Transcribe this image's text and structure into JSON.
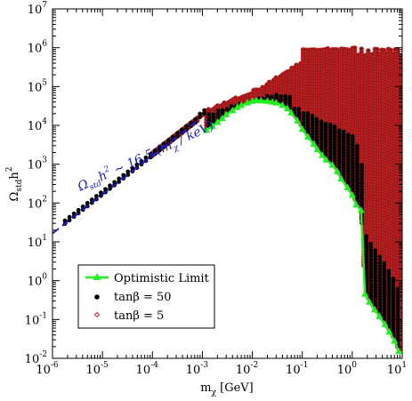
{
  "chart_data": {
    "type": "scatter",
    "xscale": "log",
    "yscale": "log",
    "xlim": [
      1e-06,
      10
    ],
    "ylim": [
      0.01,
      10000000.0
    ],
    "grid": false,
    "legend_position": "bottom-left",
    "xlabel": {
      "main": "m",
      "sub": "χ",
      "rest": " [GeV]"
    },
    "ylabel": {
      "main": "Ω",
      "sub": "std",
      "rest": "h",
      "sup": "2"
    },
    "x_tick_labels": [
      {
        "base": "10",
        "exp": "-6"
      },
      {
        "base": "10",
        "exp": "-5"
      },
      {
        "base": "10",
        "exp": "-4"
      },
      {
        "base": "10",
        "exp": "-3"
      },
      {
        "base": "10",
        "exp": "-2"
      },
      {
        "base": "10",
        "exp": "-1"
      },
      {
        "base": "10",
        "exp": "0"
      },
      {
        "base": "10",
        "exp": "1"
      }
    ],
    "y_tick_labels": [
      {
        "base": "10",
        "exp": "-2"
      },
      {
        "base": "10",
        "exp": "-1"
      },
      {
        "base": "10",
        "exp": "0"
      },
      {
        "base": "10",
        "exp": "1"
      },
      {
        "base": "10",
        "exp": "2"
      },
      {
        "base": "10",
        "exp": "3"
      },
      {
        "base": "10",
        "exp": "4"
      },
      {
        "base": "10",
        "exp": "5"
      },
      {
        "base": "10",
        "exp": "6"
      },
      {
        "base": "10",
        "exp": "7"
      }
    ],
    "colors": {
      "optimistic": "#22ee22",
      "tanb50": "#000000",
      "tanb5": "#8b1a1a",
      "tanb5_edge": "#dd2222",
      "fit": "#1a1acc"
    },
    "annotation": {
      "parts": [
        "Ω",
        "std",
        "h",
        "2",
        " ~ 16.5 (m",
        "χ",
        " / keV)"
      ],
      "fit_line": {
        "x": [
          1e-06,
          0.0008
        ],
        "y": [
          16.5,
          13200
        ]
      }
    },
    "legend": {
      "entries": [
        {
          "label": "Optimistic Limit",
          "marker": "triangle-line"
        },
        {
          "label": "tanβ = 50",
          "marker": "filled-circle"
        },
        {
          "label": "tanβ = 5",
          "marker": "open-diamond"
        }
      ]
    },
    "series": [
      {
        "name": "Optimistic Limit",
        "style": "line-triangles",
        "x": [
          0.0012,
          0.0016,
          0.002,
          0.0025,
          0.003,
          0.004,
          0.005,
          0.006,
          0.008,
          0.01,
          0.012,
          0.015,
          0.02,
          0.025,
          0.03,
          0.04,
          0.05,
          0.06,
          0.08,
          0.1,
          0.13,
          0.17,
          0.2,
          0.25,
          0.3,
          0.4,
          0.5,
          0.6,
          0.8,
          1.0,
          1.2,
          1.5,
          1.8,
          2.2,
          2.8,
          3.5,
          4.5,
          5.5,
          7,
          8.5
        ],
        "y": [
          7500,
          9500,
          12000,
          15000,
          19000,
          24000,
          29000,
          33000,
          38000,
          42000,
          44000,
          43000,
          42000,
          40000,
          38000,
          33000,
          27000,
          21000,
          13000,
          8000,
          5000,
          3300,
          2400,
          1700,
          1300,
          950,
          650,
          420,
          250,
          160,
          90,
          65,
          0.45,
          0.28,
          0.18,
          0.12,
          0.075,
          0.048,
          0.028,
          0.015
        ]
      },
      {
        "name": "tanβ = 50",
        "style": "filled-circles",
        "band": {
          "xmin": 1.8e-06,
          "xmax": 8.5,
          "low_curve": "optimistic",
          "top_edge": "dense",
          "count_cols": 60
        }
      },
      {
        "name": "tanβ = 5",
        "style": "open-diamond-dots",
        "band": {
          "xmin": 0.0001,
          "xmax": 9.0,
          "top": 800000
        }
      }
    ]
  }
}
